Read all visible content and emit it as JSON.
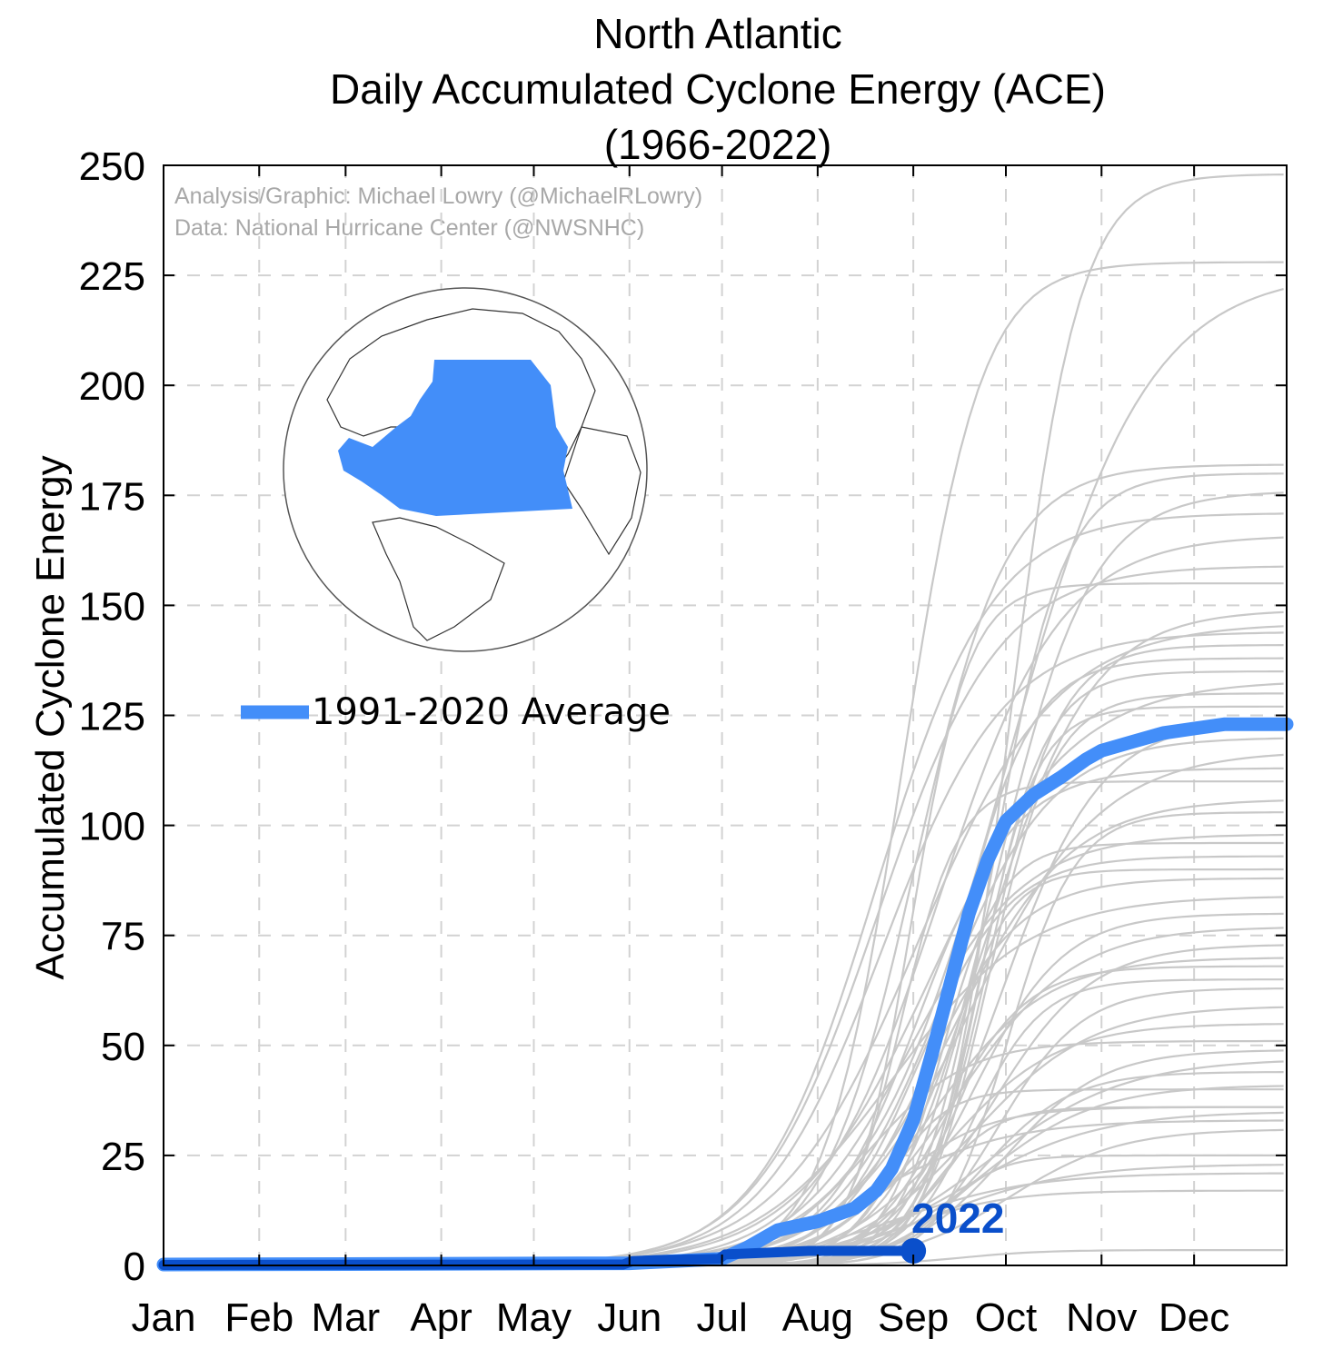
{
  "chart_data": {
    "type": "line",
    "title_lines": [
      "North Atlantic",
      "Daily Accumulated Cyclone Energy (ACE)",
      "(1966-2022)"
    ],
    "ylabel": "Accumulated Cyclone Energy",
    "xlabel": "",
    "ylim": [
      0,
      250
    ],
    "y_ticks": [
      0,
      25,
      50,
      75,
      100,
      125,
      150,
      175,
      200,
      225,
      250
    ],
    "x_ticks": [
      "Jan",
      "Feb",
      "Mar",
      "Apr",
      "May",
      "Jun",
      "Jul",
      "Aug",
      "Sep",
      "Oct",
      "Nov",
      "Dec"
    ],
    "x_tick_days": [
      1,
      32,
      60,
      91,
      121,
      152,
      182,
      213,
      244,
      274,
      305,
      335
    ],
    "xlim_days": [
      1,
      365
    ],
    "grid": true,
    "credits": [
      "Analysis/Graphic: Michael Lowry (@MichaelRLowry)",
      "Data: National Hurricane Center (@NWSNHC)"
    ],
    "legend": {
      "label": "1991-2020 Average",
      "placement": "middle-left"
    },
    "colors": {
      "average": "#438ef9",
      "current_year": "#0a4fcb",
      "historical": "#c8c8c8"
    },
    "inset_map": {
      "region": "North Atlantic basin highlighted on globe",
      "highlight_color": "#438ef9"
    },
    "series": [
      {
        "name": "1991-2020 Average",
        "x": [
          1,
          152,
          182,
          190,
          200,
          213,
          225,
          232,
          237,
          244,
          250,
          256,
          262,
          268,
          274,
          283,
          292,
          300,
          305,
          315,
          325,
          335,
          345,
          365
        ],
        "values": [
          0.2,
          0.5,
          1.5,
          4,
          8,
          10,
          13,
          17,
          22,
          33,
          48,
          64,
          80,
          92,
          101,
          107,
          111,
          115,
          117,
          119,
          121,
          122,
          123,
          123
        ]
      },
      {
        "name": "2022",
        "x": [
          1,
          150,
          153,
          160,
          181,
          183,
          200,
          210,
          230,
          244
        ],
        "values": [
          0.1,
          0.2,
          1.0,
          1.2,
          1.5,
          2.5,
          3.0,
          3.3,
          3.3,
          3.3
        ]
      }
    ],
    "annotation": {
      "text": "2022",
      "x": 244,
      "y": 3.3
    },
    "historical_final_values": [
      3.5,
      17,
      21,
      23,
      25,
      31,
      33,
      35,
      36,
      36,
      40,
      41,
      44,
      47,
      49,
      51,
      55,
      59,
      63,
      65,
      68,
      70,
      73,
      77,
      80,
      84,
      88,
      90,
      93,
      96,
      98,
      103,
      106,
      110,
      113,
      117,
      120,
      124,
      127,
      130,
      133,
      135,
      138,
      141,
      144,
      146,
      149,
      155,
      159,
      166,
      171,
      176,
      180,
      182,
      226,
      228,
      248
    ]
  }
}
